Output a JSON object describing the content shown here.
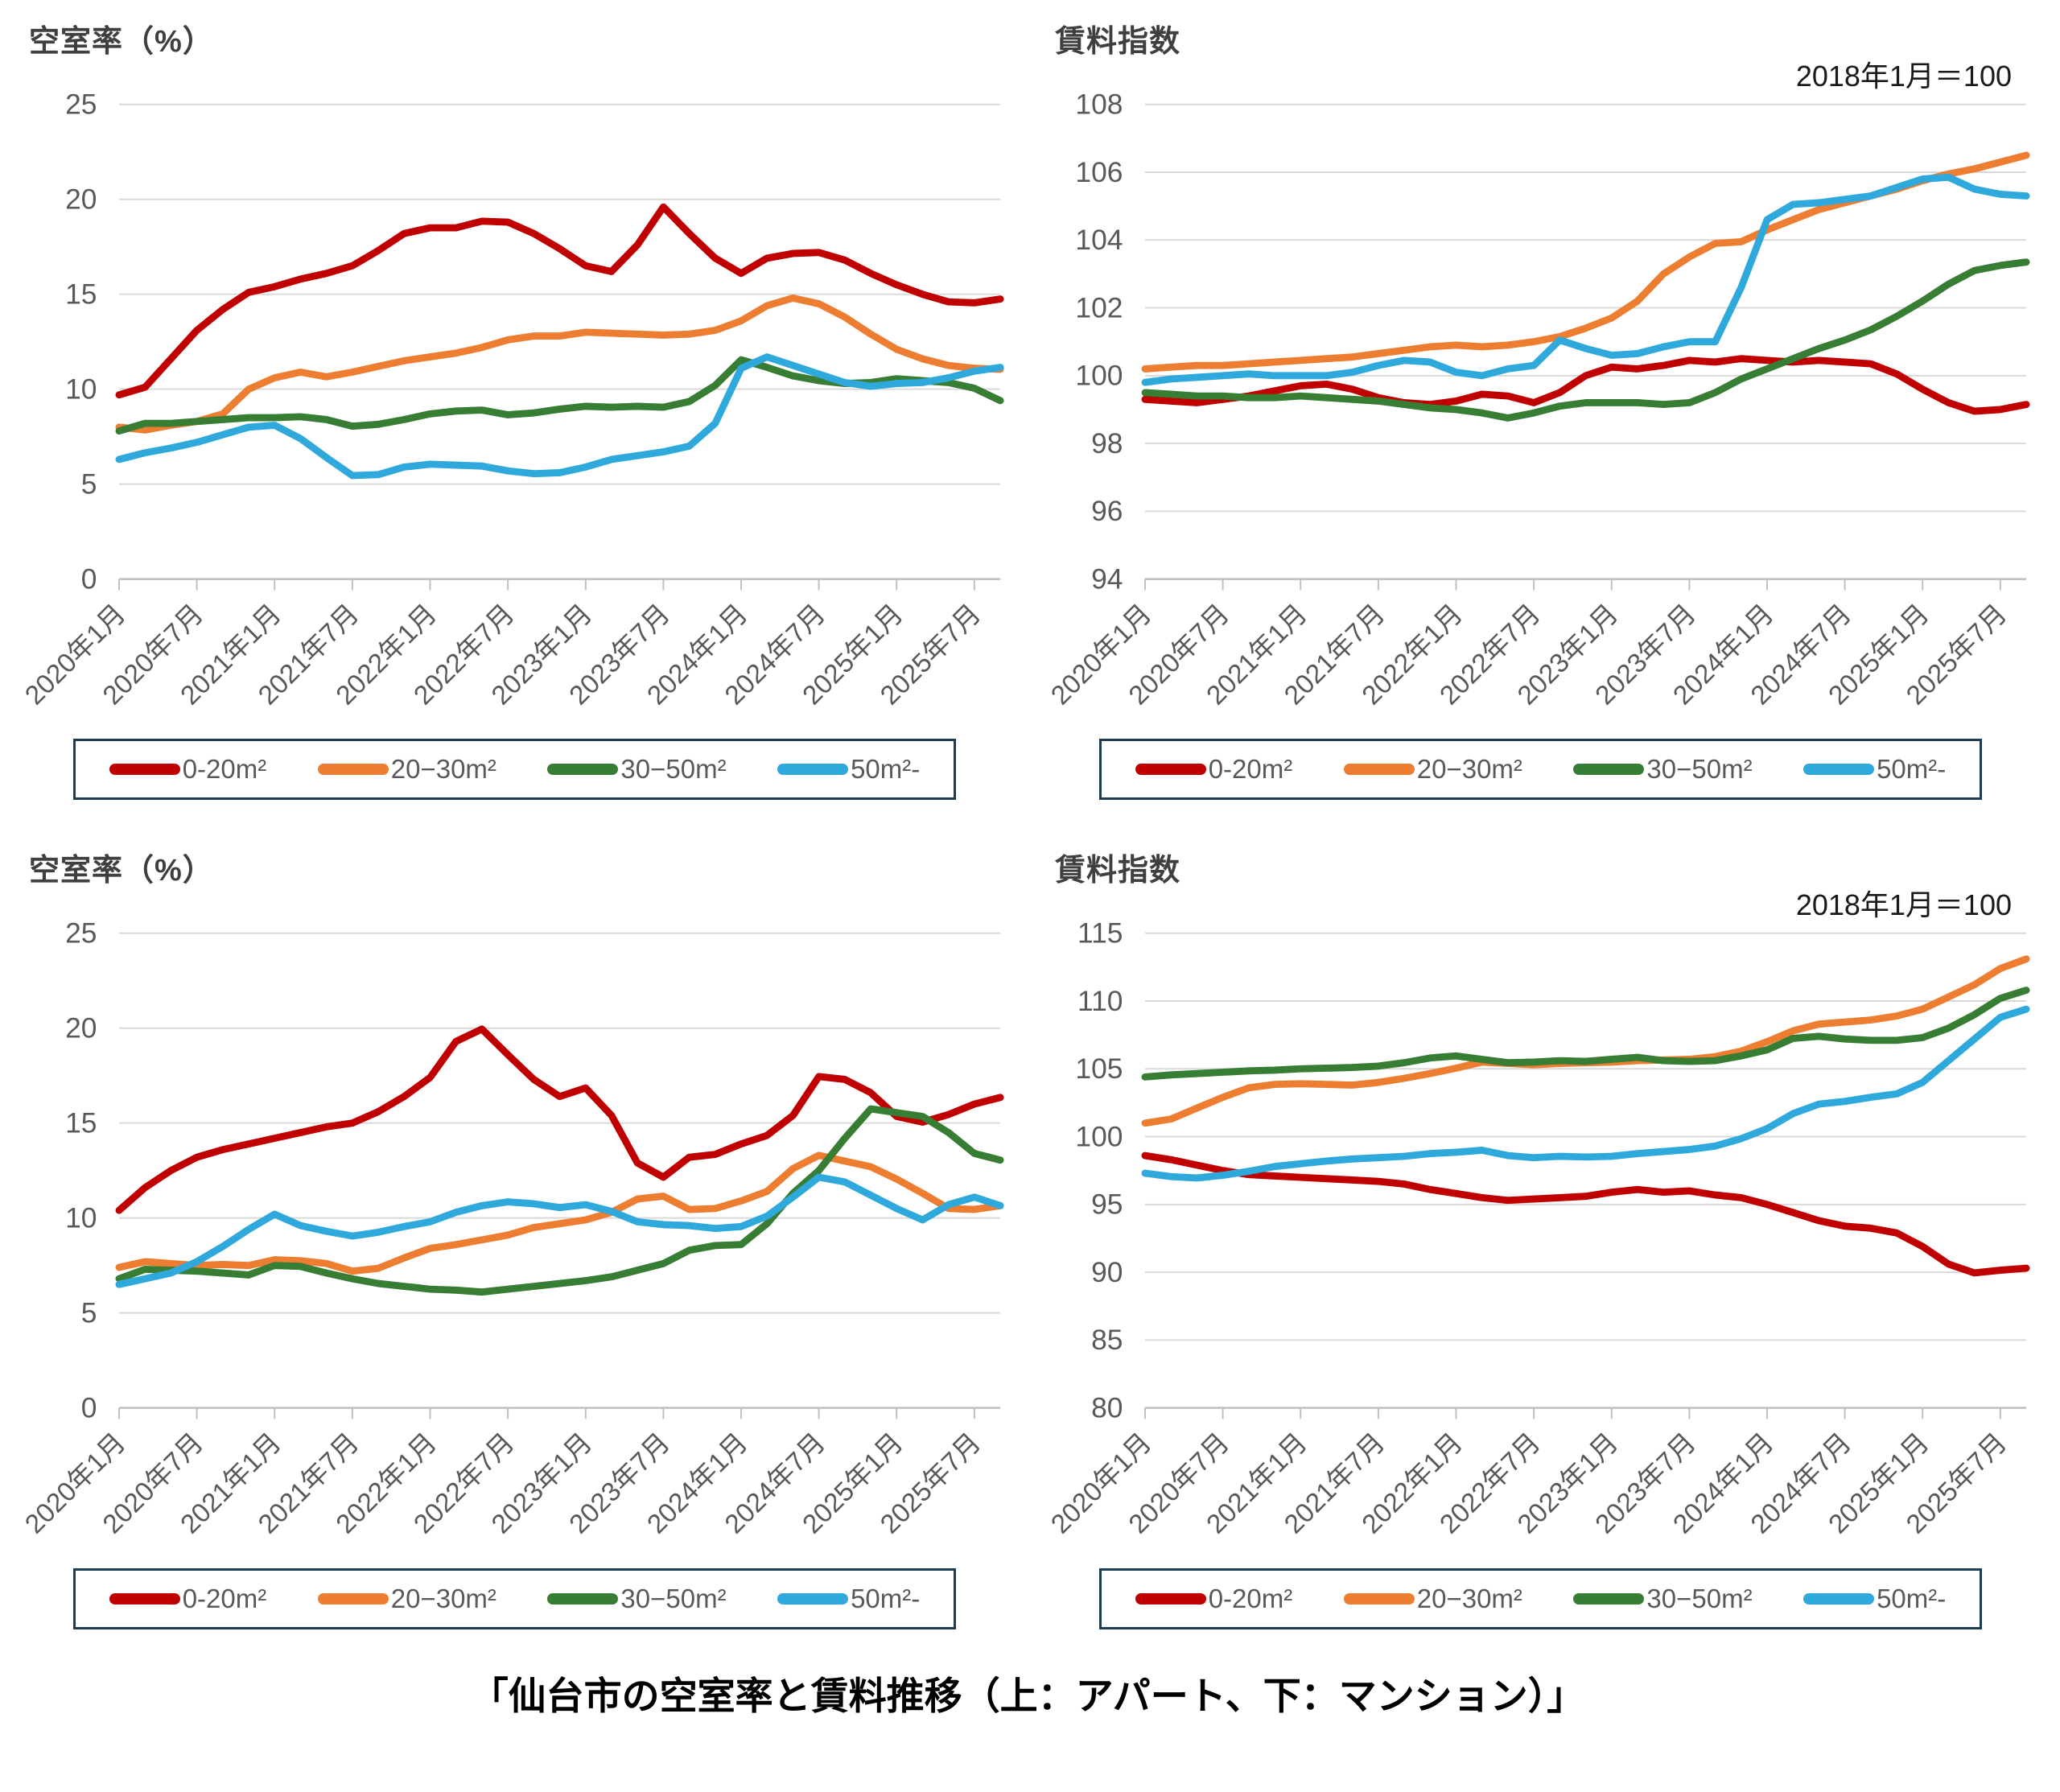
{
  "page": {
    "caption": "「仙台市の空室率と賃料推移（上：アパート、下：マンション）」"
  },
  "legend": {
    "items": [
      {
        "label": "0-20m²",
        "color": "#C00000"
      },
      {
        "label": "20−30m²",
        "color": "#ED7D31"
      },
      {
        "label": "30−50m²",
        "color": "#377D33"
      },
      {
        "label": "50m²-",
        "color": "#2FA9DC"
      }
    ]
  },
  "colors": {
    "grid": "#D9D9D9",
    "axis": "#BFBFBF",
    "tick_label": "#595959",
    "title": "#3F3F3F",
    "legend_border": "#1D3C52"
  },
  "x_labels": [
    "2020年1月",
    "2020年7月",
    "2021年1月",
    "2021年7月",
    "2022年1月",
    "2022年7月",
    "2023年1月",
    "2023年7月",
    "2024年1月",
    "2024年7月",
    "2025年1月",
    "2025年7月"
  ],
  "chart_data": [
    {
      "id": "apartment-vacancy",
      "type": "line",
      "title": "空室率（%）",
      "note": "",
      "ylim": [
        0,
        25
      ],
      "yticks": [
        0,
        5,
        10,
        15,
        20,
        25
      ],
      "grid": true,
      "legend_position": "bottom",
      "x_span_months": 68,
      "x_step_months": 2,
      "x_labels": [
        "2020年1月",
        "2020年7月",
        "2021年1月",
        "2021年7月",
        "2022年1月",
        "2022年7月",
        "2023年1月",
        "2023年7月",
        "2024年1月",
        "2024年7月",
        "2025年1月",
        "2025年7月"
      ],
      "series": [
        {
          "name": "0-20",
          "color": "#C00000",
          "values": [
            9.7,
            10.1,
            11.6,
            13.1,
            14.2,
            15.1,
            15.4,
            15.8,
            16.1,
            16.5,
            17.3,
            18.2,
            18.5,
            18.5,
            18.85,
            18.8,
            18.2,
            17.4,
            16.5,
            16.2,
            17.6,
            19.6,
            18.2,
            16.9,
            16.1,
            16.9,
            17.15,
            17.2,
            16.8,
            16.1,
            15.5,
            15.0,
            14.6,
            14.55,
            14.75
          ]
        },
        {
          "name": "20-30",
          "color": "#ED7D31",
          "values": [
            8.0,
            7.85,
            8.1,
            8.3,
            8.7,
            10.0,
            10.6,
            10.9,
            10.65,
            10.9,
            11.2,
            11.5,
            11.7,
            11.9,
            12.2,
            12.6,
            12.8,
            12.8,
            13.0,
            12.95,
            12.9,
            12.85,
            12.9,
            13.1,
            13.6,
            14.4,
            14.8,
            14.5,
            13.8,
            12.9,
            12.1,
            11.6,
            11.25,
            11.1,
            11.05
          ]
        },
        {
          "name": "30-50",
          "color": "#377D33",
          "values": [
            7.8,
            8.2,
            8.2,
            8.3,
            8.4,
            8.5,
            8.5,
            8.55,
            8.4,
            8.05,
            8.15,
            8.4,
            8.7,
            8.85,
            8.9,
            8.65,
            8.75,
            8.95,
            9.1,
            9.05,
            9.1,
            9.05,
            9.35,
            10.2,
            11.55,
            11.15,
            10.7,
            10.45,
            10.3,
            10.35,
            10.55,
            10.45,
            10.35,
            10.05,
            9.4
          ]
        },
        {
          "name": "50plus",
          "color": "#2FA9DC",
          "values": [
            6.3,
            6.65,
            6.9,
            7.2,
            7.6,
            8.0,
            8.1,
            7.4,
            6.4,
            5.45,
            5.5,
            5.9,
            6.05,
            6.0,
            5.95,
            5.7,
            5.55,
            5.6,
            5.9,
            6.3,
            6.5,
            6.7,
            7.0,
            8.2,
            11.1,
            11.7,
            11.25,
            10.8,
            10.35,
            10.15,
            10.3,
            10.35,
            10.6,
            10.95,
            11.15
          ]
        }
      ]
    },
    {
      "id": "apartment-rent-index",
      "type": "line",
      "title": "賃料指数",
      "note": "2018年1月＝100",
      "ylim": [
        94,
        108
      ],
      "yticks": [
        94,
        96,
        98,
        100,
        102,
        104,
        106,
        108
      ],
      "grid": true,
      "legend_position": "bottom",
      "x_span_months": 68,
      "x_step_months": 2,
      "x_labels": [
        "2020年1月",
        "2020年7月",
        "2021年1月",
        "2021年7月",
        "2022年1月",
        "2022年7月",
        "2023年1月",
        "2023年7月",
        "2024年1月",
        "2024年7月",
        "2025年1月",
        "2025年7月"
      ],
      "series": [
        {
          "name": "0-20",
          "color": "#C00000",
          "values": [
            99.3,
            99.25,
            99.2,
            99.3,
            99.4,
            99.55,
            99.7,
            99.75,
            99.6,
            99.35,
            99.2,
            99.15,
            99.25,
            99.45,
            99.4,
            99.2,
            99.5,
            100.0,
            100.25,
            100.2,
            100.3,
            100.45,
            100.4,
            100.5,
            100.45,
            100.4,
            100.45,
            100.4,
            100.35,
            100.05,
            99.6,
            99.2,
            98.95,
            99.0,
            99.15
          ]
        },
        {
          "name": "20-30",
          "color": "#ED7D31",
          "values": [
            100.2,
            100.25,
            100.3,
            100.3,
            100.35,
            100.4,
            100.45,
            100.5,
            100.55,
            100.65,
            100.75,
            100.85,
            100.9,
            100.85,
            100.9,
            101.0,
            101.15,
            101.4,
            101.7,
            102.2,
            103.0,
            103.5,
            103.9,
            103.95,
            104.3,
            104.6,
            104.9,
            105.1,
            105.3,
            105.5,
            105.75,
            105.95,
            106.1,
            106.3,
            106.5
          ]
        },
        {
          "name": "30-50",
          "color": "#377D33",
          "values": [
            99.5,
            99.45,
            99.4,
            99.4,
            99.35,
            99.35,
            99.4,
            99.35,
            99.3,
            99.25,
            99.15,
            99.05,
            99.0,
            98.9,
            98.75,
            98.9,
            99.1,
            99.2,
            99.2,
            99.2,
            99.15,
            99.2,
            99.5,
            99.9,
            100.2,
            100.5,
            100.8,
            101.05,
            101.35,
            101.75,
            102.2,
            102.7,
            103.1,
            103.25,
            103.35
          ]
        },
        {
          "name": "50plus",
          "color": "#2FA9DC",
          "values": [
            99.8,
            99.9,
            99.95,
            100.0,
            100.05,
            100.0,
            100.0,
            100.0,
            100.1,
            100.3,
            100.45,
            100.4,
            100.1,
            100.0,
            100.2,
            100.3,
            101.05,
            100.8,
            100.6,
            100.65,
            100.85,
            101.0,
            101.0,
            102.6,
            104.6,
            105.05,
            105.1,
            105.2,
            105.3,
            105.55,
            105.8,
            105.85,
            105.5,
            105.35,
            105.3
          ]
        }
      ]
    },
    {
      "id": "mansion-vacancy",
      "type": "line",
      "title": "空室率（%）",
      "note": "",
      "ylim": [
        0,
        25
      ],
      "yticks": [
        0,
        5,
        10,
        15,
        20,
        25
      ],
      "grid": true,
      "legend_position": "bottom",
      "x_span_months": 68,
      "x_step_months": 2,
      "x_labels": [
        "2020年1月",
        "2020年7月",
        "2021年1月",
        "2021年7月",
        "2022年1月",
        "2022年7月",
        "2023年1月",
        "2023年7月",
        "2024年1月",
        "2024年7月",
        "2025年1月",
        "2025年7月"
      ],
      "series": [
        {
          "name": "0-20",
          "color": "#C00000",
          "values": [
            10.4,
            11.6,
            12.5,
            13.2,
            13.6,
            13.9,
            14.2,
            14.5,
            14.8,
            15.0,
            15.6,
            16.4,
            17.4,
            19.3,
            19.95,
            18.6,
            17.3,
            16.4,
            16.85,
            15.4,
            12.9,
            12.15,
            13.2,
            13.35,
            13.9,
            14.35,
            15.4,
            17.45,
            17.3,
            16.6,
            15.35,
            15.05,
            15.45,
            16.0,
            16.35
          ]
        },
        {
          "name": "20-30",
          "color": "#ED7D31",
          "values": [
            7.4,
            7.7,
            7.6,
            7.5,
            7.55,
            7.5,
            7.8,
            7.75,
            7.6,
            7.2,
            7.35,
            7.9,
            8.4,
            8.6,
            8.85,
            9.1,
            9.5,
            9.7,
            9.9,
            10.3,
            11.0,
            11.15,
            10.45,
            10.5,
            10.9,
            11.4,
            12.6,
            13.3,
            13.0,
            12.7,
            12.05,
            11.3,
            10.5,
            10.45,
            10.65
          ]
        },
        {
          "name": "30-50",
          "color": "#377D33",
          "values": [
            6.8,
            7.3,
            7.25,
            7.2,
            7.1,
            7.0,
            7.5,
            7.45,
            7.1,
            6.8,
            6.55,
            6.4,
            6.25,
            6.2,
            6.1,
            6.25,
            6.4,
            6.55,
            6.7,
            6.9,
            7.25,
            7.6,
            8.3,
            8.55,
            8.6,
            9.7,
            11.3,
            12.5,
            14.2,
            15.75,
            15.55,
            15.35,
            14.5,
            13.4,
            13.05
          ]
        },
        {
          "name": "50plus",
          "color": "#2FA9DC",
          "values": [
            6.5,
            6.8,
            7.1,
            7.7,
            8.5,
            9.4,
            10.2,
            9.6,
            9.3,
            9.05,
            9.25,
            9.55,
            9.8,
            10.3,
            10.65,
            10.85,
            10.75,
            10.55,
            10.7,
            10.35,
            9.8,
            9.65,
            9.6,
            9.45,
            9.55,
            10.1,
            11.1,
            12.15,
            11.9,
            11.2,
            10.5,
            9.9,
            10.7,
            11.1,
            10.65
          ]
        }
      ]
    },
    {
      "id": "mansion-rent-index",
      "type": "line",
      "title": "賃料指数",
      "note": "2018年1月＝100",
      "ylim": [
        80,
        115
      ],
      "yticks": [
        80,
        85,
        90,
        95,
        100,
        105,
        110,
        115
      ],
      "grid": true,
      "legend_position": "bottom",
      "x_span_months": 68,
      "x_step_months": 2,
      "x_labels": [
        "2020年1月",
        "2020年7月",
        "2021年1月",
        "2021年7月",
        "2022年1月",
        "2022年7月",
        "2023年1月",
        "2023年7月",
        "2024年1月",
        "2024年7月",
        "2025年1月",
        "2025年7月"
      ],
      "series": [
        {
          "name": "0-20",
          "color": "#C00000",
          "values": [
            98.6,
            98.3,
            97.9,
            97.5,
            97.2,
            97.1,
            97.0,
            96.9,
            96.8,
            96.7,
            96.5,
            96.1,
            95.8,
            95.5,
            95.3,
            95.4,
            95.5,
            95.6,
            95.9,
            96.1,
            95.9,
            96.0,
            95.7,
            95.5,
            95.0,
            94.4,
            93.8,
            93.4,
            93.25,
            92.9,
            91.9,
            90.6,
            89.95,
            90.15,
            90.3
          ]
        },
        {
          "name": "20-30",
          "color": "#ED7D31",
          "values": [
            101.0,
            101.3,
            102.1,
            102.9,
            103.6,
            103.85,
            103.9,
            103.85,
            103.8,
            104.0,
            104.3,
            104.65,
            105.05,
            105.5,
            105.4,
            105.3,
            105.4,
            105.45,
            105.5,
            105.6,
            105.65,
            105.7,
            105.9,
            106.3,
            107.0,
            107.8,
            108.3,
            108.45,
            108.6,
            108.9,
            109.4,
            110.3,
            111.2,
            112.4,
            113.1
          ]
        },
        {
          "name": "30-50",
          "color": "#377D33",
          "values": [
            104.4,
            104.55,
            104.65,
            104.75,
            104.85,
            104.9,
            105.0,
            105.05,
            105.1,
            105.2,
            105.45,
            105.8,
            105.95,
            105.7,
            105.45,
            105.5,
            105.6,
            105.55,
            105.7,
            105.85,
            105.6,
            105.55,
            105.6,
            105.95,
            106.4,
            107.25,
            107.4,
            107.2,
            107.1,
            107.1,
            107.3,
            108.0,
            109.0,
            110.2,
            110.8
          ]
        },
        {
          "name": "50plus",
          "color": "#2FA9DC",
          "values": [
            97.3,
            97.05,
            96.95,
            97.15,
            97.45,
            97.8,
            98.0,
            98.2,
            98.35,
            98.45,
            98.55,
            98.75,
            98.85,
            99.0,
            98.6,
            98.45,
            98.55,
            98.5,
            98.55,
            98.75,
            98.9,
            99.05,
            99.3,
            99.85,
            100.6,
            101.7,
            102.4,
            102.6,
            102.9,
            103.15,
            104.0,
            105.6,
            107.2,
            108.8,
            109.4
          ]
        }
      ]
    }
  ]
}
